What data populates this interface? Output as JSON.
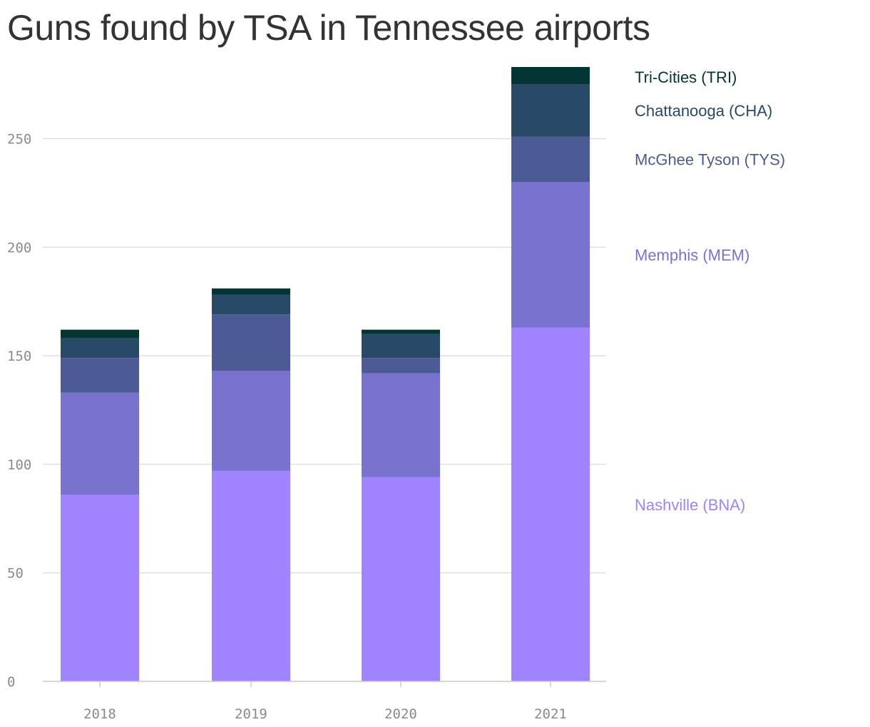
{
  "title": "Guns found by TSA in Tennessee airports",
  "chart_data": {
    "type": "bar",
    "stacked": true,
    "title": "Guns found by TSA in Tennessee airports",
    "categories": [
      "2018",
      "2019",
      "2020",
      "2021"
    ],
    "series": [
      {
        "name": "Nashville (BNA)",
        "color": "#a084ff",
        "values": [
          86,
          97,
          94,
          163
        ]
      },
      {
        "name": "Memphis (MEM)",
        "color": "#7a72cf",
        "values": [
          47,
          46,
          48,
          67
        ]
      },
      {
        "name": "McGhee Tyson (TYS)",
        "color": "#4c5b96",
        "values": [
          16,
          26,
          7,
          21
        ]
      },
      {
        "name": "Chattanooga (CHA)",
        "color": "#284a68",
        "values": [
          9,
          9,
          11,
          24
        ]
      },
      {
        "name": "Tri-Cities (TRI)",
        "color": "#023534",
        "values": [
          4,
          3,
          2,
          8
        ]
      }
    ],
    "ylim": [
      0,
      283
    ],
    "yticks": [
      0,
      50,
      100,
      150,
      200,
      250
    ],
    "xlabel": "",
    "ylabel": "",
    "grid": true,
    "legend": "right"
  }
}
